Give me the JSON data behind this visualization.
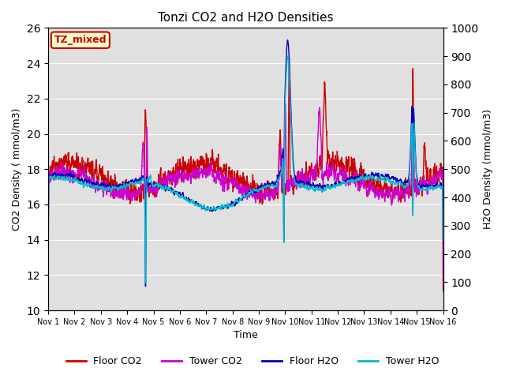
{
  "title": "Tonzi CO2 and H2O Densities",
  "xlabel": "Time",
  "ylabel_left": "CO2 Density ( mmol/m3)",
  "ylabel_right": "H2O Density (mmol/m3)",
  "ylim_left": [
    10,
    26
  ],
  "ylim_right": [
    0,
    1000
  ],
  "yticks_left": [
    10,
    12,
    14,
    16,
    18,
    20,
    22,
    24,
    26
  ],
  "yticks_right": [
    0,
    100,
    200,
    300,
    400,
    500,
    600,
    700,
    800,
    900,
    1000
  ],
  "xtick_labels": [
    "Nov 1",
    "Nov 2",
    "Nov 3",
    "Nov 4",
    "Nov 5",
    "Nov 6",
    "Nov 7",
    "Nov 8",
    "Nov 9",
    "Nov 10",
    "Nov 11",
    "Nov 12",
    "Nov 13",
    "Nov 14",
    "Nov 15",
    "Nov 16"
  ],
  "annotation_text": "TZ_mixed",
  "annotation_color": "#cc0000",
  "annotation_bg": "#ffffcc",
  "background_color": "#e0e0e0",
  "legend_entries": [
    "Floor CO2",
    "Tower CO2",
    "Floor H2O",
    "Tower H2O"
  ],
  "legend_colors": [
    "#cc0000",
    "#cc00cc",
    "#0000bb",
    "#00bbcc"
  ],
  "line_width": 1.0,
  "n_days": 15,
  "seed": 42
}
